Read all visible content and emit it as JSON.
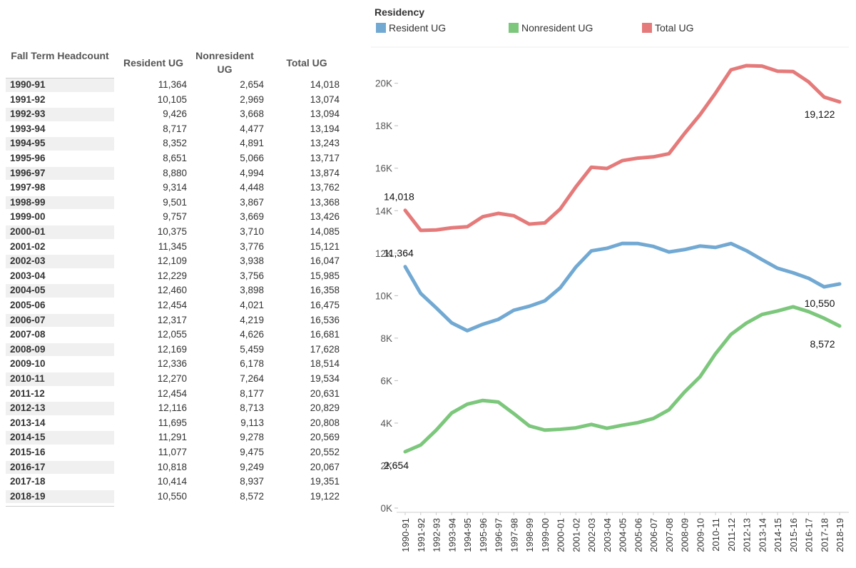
{
  "table": {
    "headers": {
      "term": "Fall Term Headcount",
      "resident": "Resident UG",
      "nonresident": "Nonresident UG",
      "total": "Total UG"
    },
    "rows": [
      {
        "term": "1990-91",
        "resident": "11,364",
        "nonresident": "2,654",
        "total": "14,018"
      },
      {
        "term": "1991-92",
        "resident": "10,105",
        "nonresident": "2,969",
        "total": "13,074"
      },
      {
        "term": "1992-93",
        "resident": "9,426",
        "nonresident": "3,668",
        "total": "13,094"
      },
      {
        "term": "1993-94",
        "resident": "8,717",
        "nonresident": "4,477",
        "total": "13,194"
      },
      {
        "term": "1994-95",
        "resident": "8,352",
        "nonresident": "4,891",
        "total": "13,243"
      },
      {
        "term": "1995-96",
        "resident": "8,651",
        "nonresident": "5,066",
        "total": "13,717"
      },
      {
        "term": "1996-97",
        "resident": "8,880",
        "nonresident": "4,994",
        "total": "13,874"
      },
      {
        "term": "1997-98",
        "resident": "9,314",
        "nonresident": "4,448",
        "total": "13,762"
      },
      {
        "term": "1998-99",
        "resident": "9,501",
        "nonresident": "3,867",
        "total": "13,368"
      },
      {
        "term": "1999-00",
        "resident": "9,757",
        "nonresident": "3,669",
        "total": "13,426"
      },
      {
        "term": "2000-01",
        "resident": "10,375",
        "nonresident": "3,710",
        "total": "14,085"
      },
      {
        "term": "2001-02",
        "resident": "11,345",
        "nonresident": "3,776",
        "total": "15,121"
      },
      {
        "term": "2002-03",
        "resident": "12,109",
        "nonresident": "3,938",
        "total": "16,047"
      },
      {
        "term": "2003-04",
        "resident": "12,229",
        "nonresident": "3,756",
        "total": "15,985"
      },
      {
        "term": "2004-05",
        "resident": "12,460",
        "nonresident": "3,898",
        "total": "16,358"
      },
      {
        "term": "2005-06",
        "resident": "12,454",
        "nonresident": "4,021",
        "total": "16,475"
      },
      {
        "term": "2006-07",
        "resident": "12,317",
        "nonresident": "4,219",
        "total": "16,536"
      },
      {
        "term": "2007-08",
        "resident": "12,055",
        "nonresident": "4,626",
        "total": "16,681"
      },
      {
        "term": "2008-09",
        "resident": "12,169",
        "nonresident": "5,459",
        "total": "17,628"
      },
      {
        "term": "2009-10",
        "resident": "12,336",
        "nonresident": "6,178",
        "total": "18,514"
      },
      {
        "term": "2010-11",
        "resident": "12,270",
        "nonresident": "7,264",
        "total": "19,534"
      },
      {
        "term": "2011-12",
        "resident": "12,454",
        "nonresident": "8,177",
        "total": "20,631"
      },
      {
        "term": "2012-13",
        "resident": "12,116",
        "nonresident": "8,713",
        "total": "20,829"
      },
      {
        "term": "2013-14",
        "resident": "11,695",
        "nonresident": "9,113",
        "total": "20,808"
      },
      {
        "term": "2014-15",
        "resident": "11,291",
        "nonresident": "9,278",
        "total": "20,569"
      },
      {
        "term": "2015-16",
        "resident": "11,077",
        "nonresident": "9,475",
        "total": "20,552"
      },
      {
        "term": "2016-17",
        "resident": "10,818",
        "nonresident": "9,249",
        "total": "20,067"
      },
      {
        "term": "2017-18",
        "resident": "10,414",
        "nonresident": "8,937",
        "total": "19,351"
      },
      {
        "term": "2018-19",
        "resident": "10,550",
        "nonresident": "8,572",
        "total": "19,122"
      }
    ]
  },
  "chart_data": {
    "type": "line",
    "legend_title": "Residency",
    "legend_position": "top",
    "grid": false,
    "xlabel": "",
    "ylabel": "",
    "ylim": [
      0,
      21500
    ],
    "yticks": [
      0,
      2000,
      4000,
      6000,
      8000,
      10000,
      12000,
      14000,
      16000,
      18000,
      20000
    ],
    "ytick_labels": [
      "0K",
      "2K",
      "4K",
      "6K",
      "8K",
      "10K",
      "12K",
      "14K",
      "16K",
      "18K",
      "20K"
    ],
    "x": [
      "1990-91",
      "1991-92",
      "1992-93",
      "1993-94",
      "1994-95",
      "1995-96",
      "1996-97",
      "1997-98",
      "1998-99",
      "1999-00",
      "2000-01",
      "2001-02",
      "2002-03",
      "2003-04",
      "2004-05",
      "2005-06",
      "2006-07",
      "2007-08",
      "2008-09",
      "2009-10",
      "2010-11",
      "2011-12",
      "2012-13",
      "2013-14",
      "2014-15",
      "2015-16",
      "2016-17",
      "2017-18",
      "2018-19"
    ],
    "series": [
      {
        "name": "Resident UG",
        "color": "#72a9d3",
        "values": [
          11364,
          10105,
          9426,
          8717,
          8352,
          8651,
          8880,
          9314,
          9501,
          9757,
          10375,
          11345,
          12109,
          12229,
          12460,
          12454,
          12317,
          12055,
          12169,
          12336,
          12270,
          12454,
          12116,
          11695,
          11291,
          11077,
          10818,
          10414,
          10550
        ],
        "start_label": "11,364",
        "end_label": "10,550"
      },
      {
        "name": "Nonresident UG",
        "color": "#7cc77c",
        "values": [
          2654,
          2969,
          3668,
          4477,
          4891,
          5066,
          4994,
          4448,
          3867,
          3669,
          3710,
          3776,
          3938,
          3756,
          3898,
          4021,
          4219,
          4626,
          5459,
          6178,
          7264,
          8177,
          8713,
          9113,
          9278,
          9475,
          9249,
          8937,
          8572
        ],
        "start_label": "2,654",
        "end_label": "8,572"
      },
      {
        "name": "Total UG",
        "color": "#e57a7a",
        "values": [
          14018,
          13074,
          13094,
          13194,
          13243,
          13717,
          13874,
          13762,
          13368,
          13426,
          14085,
          15121,
          16047,
          15985,
          16358,
          16475,
          16536,
          16681,
          17628,
          18514,
          19534,
          20631,
          20829,
          20808,
          20569,
          20552,
          20067,
          19351,
          19122
        ],
        "start_label": "14,018",
        "end_label": "19,122"
      }
    ]
  }
}
